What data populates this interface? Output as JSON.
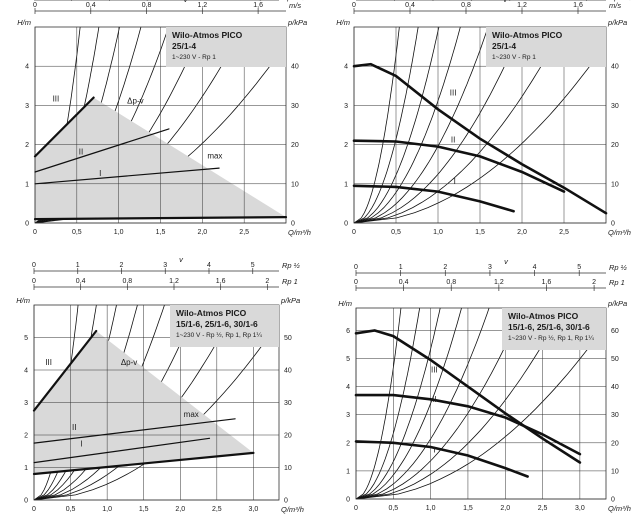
{
  "colors": {
    "grid": "#333333",
    "fill": "#d9d9d9",
    "curve": "#111111",
    "box": "#d9d9d9"
  },
  "chart_data": [
    {
      "type": "line",
      "variant": "control-range",
      "title": "Wilo-Atmos PICO",
      "subtitle": "25/1-4",
      "note": "1~230 V - Rp 1",
      "xlabel": "Q/m³/h",
      "ylabel": "H/m",
      "y2label": "p/kPa",
      "topaxis_label": "v",
      "topaxis_unit": "m/s",
      "xlim": [
        0,
        3
      ],
      "ylim": [
        0,
        5
      ],
      "xticks": [
        "0",
        "0,5",
        "1,0",
        "1,5",
        "2,0",
        "2,5"
      ],
      "yticks": [
        "0",
        "1",
        "2",
        "3",
        "4"
      ],
      "y2ticks": [
        "0",
        "10",
        "20",
        "30",
        "40"
      ],
      "topaxis": [
        {
          "unit": "m/s",
          "ticks": [
            "0",
            "0,4",
            "0,8",
            "1,2",
            "1,6"
          ],
          "values": [
            0,
            0.4,
            0.8,
            1.2,
            1.6
          ],
          "max": 1.8
        }
      ],
      "envelope": {
        "x": [
          0,
          0,
          0.7,
          3.0
        ],
        "y": [
          0.1,
          1.7,
          3.2,
          0.15
        ]
      },
      "series": [
        {
          "name": "III",
          "x": [
            0,
            0.7
          ],
          "y": [
            1.7,
            3.2
          ]
        },
        {
          "name": "II",
          "x": [
            0,
            1.6
          ],
          "y": [
            1.3,
            2.4
          ]
        },
        {
          "name": "I",
          "x": [
            0,
            2.2
          ],
          "y": [
            1.0,
            1.4
          ]
        },
        {
          "name": "",
          "x": [
            0,
            3.0
          ],
          "y": [
            0.1,
            0.15
          ]
        }
      ],
      "labels": [
        {
          "text": "III",
          "x": 0.25,
          "y": 3.1
        },
        {
          "text": "II",
          "x": 0.55,
          "y": 1.75
        },
        {
          "text": "I",
          "x": 0.78,
          "y": 1.2
        },
        {
          "text": "Δp-v",
          "x": 1.2,
          "y": 3.05
        },
        {
          "text": "max",
          "x": 2.15,
          "y": 1.65
        }
      ]
    },
    {
      "type": "line",
      "variant": "pump-curves",
      "title": "Wilo-Atmos PICO",
      "subtitle": "25/1-4",
      "note": "1~230 V - Rp 1",
      "xlabel": "Q/m³/h",
      "ylabel": "H/m",
      "y2label": "p/kPa",
      "topaxis_label": "v",
      "topaxis_unit": "m/s",
      "xlim": [
        0,
        3
      ],
      "ylim": [
        0,
        5
      ],
      "xticks": [
        "0",
        "0,5",
        "1,0",
        "1,5",
        "2,0",
        "2,5"
      ],
      "yticks": [
        "0",
        "1",
        "2",
        "3",
        "4"
      ],
      "y2ticks": [
        "0",
        "10",
        "20",
        "30",
        "40"
      ],
      "topaxis": [
        {
          "unit": "m/s",
          "ticks": [
            "0",
            "0,4",
            "0,8",
            "1,2",
            "1,6"
          ],
          "values": [
            0,
            0.4,
            0.8,
            1.2,
            1.6
          ],
          "max": 1.8
        }
      ],
      "series": [
        {
          "name": "III",
          "x": [
            0,
            0.2,
            0.5,
            1.0,
            1.5,
            2.0,
            2.5,
            3.0
          ],
          "y": [
            4.0,
            4.05,
            3.75,
            2.9,
            2.15,
            1.5,
            0.9,
            0.25
          ]
        },
        {
          "name": "II",
          "x": [
            0,
            0.5,
            1.0,
            1.5,
            2.0,
            2.5
          ],
          "y": [
            2.1,
            2.08,
            1.95,
            1.7,
            1.3,
            0.8
          ]
        },
        {
          "name": "I",
          "x": [
            0,
            0.5,
            1.0,
            1.5,
            1.9
          ],
          "y": [
            0.95,
            0.92,
            0.8,
            0.55,
            0.3
          ]
        }
      ],
      "labels": [
        {
          "text": "III",
          "x": 1.18,
          "y": 3.25
        },
        {
          "text": "II",
          "x": 1.18,
          "y": 2.05
        },
        {
          "text": "I",
          "x": 1.2,
          "y": 1.0
        }
      ]
    },
    {
      "type": "line",
      "variant": "control-range",
      "title": "Wilo-Atmos PICO",
      "subtitle": "15/1-6, 25/1-6, 30/1-6",
      "note": "1~230 V - Rp ½, Rp 1, Rp 1¼",
      "xlabel": "Q/m³/h",
      "ylabel": "H/m",
      "y2label": "p/kPa",
      "topaxis_label": "v",
      "xlim": [
        0,
        3.35
      ],
      "ylim": [
        0,
        6
      ],
      "xticks": [
        "0",
        "0,5",
        "1,0",
        "1,5",
        "2,0",
        "2,5",
        "3,0"
      ],
      "yticks": [
        "0",
        "1",
        "2",
        "3",
        "4",
        "5"
      ],
      "y2ticks": [
        "0",
        "10",
        "20",
        "30",
        "40",
        "50"
      ],
      "topaxis": [
        {
          "unit": "Rp ½",
          "ticks": [
            "0",
            "1",
            "2",
            "3",
            "4",
            "5"
          ],
          "values": [
            0,
            1,
            2,
            3,
            4,
            5
          ],
          "max": 5.6
        },
        {
          "unit": "Rp 1",
          "ticks": [
            "0",
            "0,4",
            "0,8",
            "1,2",
            "1,6",
            "2"
          ],
          "values": [
            0,
            0.4,
            0.8,
            1.2,
            1.6,
            2.0
          ],
          "max": 2.1
        },
        {
          "unit": "Rp 1¼",
          "ticks": [
            "0",
            "0,2",
            "0,4",
            "0,6",
            "0,8",
            "1",
            "1,2"
          ],
          "values": [
            0,
            0.2,
            0.4,
            0.6,
            0.8,
            1.0,
            1.2
          ],
          "max": 1.3
        }
      ],
      "envelope": {
        "x": [
          0,
          0,
          0.85,
          3.0
        ],
        "y": [
          0.8,
          2.75,
          5.2,
          1.45
        ]
      },
      "series": [
        {
          "name": "III",
          "x": [
            0,
            0.85
          ],
          "y": [
            2.75,
            5.2
          ]
        },
        {
          "name": "II",
          "x": [
            0,
            2.75
          ],
          "y": [
            1.75,
            2.5
          ]
        },
        {
          "name": "I",
          "x": [
            0,
            2.4
          ],
          "y": [
            1.15,
            1.9
          ]
        },
        {
          "name": "",
          "x": [
            0,
            3.0
          ],
          "y": [
            0.8,
            1.45
          ]
        }
      ],
      "labels": [
        {
          "text": "III",
          "x": 0.2,
          "y": 4.15
        },
        {
          "text": "II",
          "x": 0.55,
          "y": 2.15
        },
        {
          "text": "I",
          "x": 0.65,
          "y": 1.65
        },
        {
          "text": "Δp-v",
          "x": 1.3,
          "y": 4.15
        },
        {
          "text": "max",
          "x": 2.15,
          "y": 2.55
        }
      ]
    },
    {
      "type": "line",
      "variant": "pump-curves",
      "title": "Wilo-Atmos PICO",
      "subtitle": "15/1-6, 25/1-6, 30/1-6",
      "note": "1~230 V - Rp ½, Rp 1, Rp 1¼",
      "xlabel": "Q/m³/h",
      "ylabel": "H/m",
      "y2label": "p/kPa",
      "topaxis_label": "v",
      "xlim": [
        0,
        3.35
      ],
      "ylim": [
        0,
        6.8
      ],
      "xticks": [
        "0",
        "0,5",
        "1,0",
        "1,5",
        "2,0",
        "2,5",
        "3,0"
      ],
      "yticks": [
        "0",
        "1",
        "2",
        "3",
        "4",
        "5",
        "6"
      ],
      "y2ticks": [
        "0",
        "10",
        "20",
        "30",
        "40",
        "50",
        "60"
      ],
      "topaxis": [
        {
          "unit": "Rp ½",
          "ticks": [
            "0",
            "1",
            "2",
            "3",
            "4",
            "5"
          ],
          "values": [
            0,
            1,
            2,
            3,
            4,
            5
          ],
          "max": 5.6
        },
        {
          "unit": "Rp 1",
          "ticks": [
            "0",
            "0,4",
            "0,8",
            "1,2",
            "1,6",
            "2"
          ],
          "values": [
            0,
            0.4,
            0.8,
            1.2,
            1.6,
            2.0
          ],
          "max": 2.1
        },
        {
          "unit": "Rp 1¼",
          "ticks": [
            "0",
            "0,2",
            "0,4",
            "0,6",
            "0,8",
            "1",
            "1,2"
          ],
          "values": [
            0,
            0.2,
            0.4,
            0.6,
            0.8,
            1.0,
            1.2
          ],
          "max": 1.3
        }
      ],
      "series": [
        {
          "name": "III",
          "x": [
            0,
            0.25,
            0.5,
            1.0,
            1.5,
            2.0,
            2.5,
            3.0
          ],
          "y": [
            5.9,
            6.0,
            5.8,
            4.95,
            4.0,
            3.05,
            2.15,
            1.3
          ]
        },
        {
          "name": "II",
          "x": [
            0,
            0.5,
            1.0,
            1.5,
            2.0,
            2.5,
            3.0
          ],
          "y": [
            3.7,
            3.7,
            3.55,
            3.3,
            2.9,
            2.3,
            1.6
          ]
        },
        {
          "name": "I",
          "x": [
            0,
            0.5,
            1.0,
            1.5,
            2.0,
            2.3
          ],
          "y": [
            2.05,
            2.0,
            1.85,
            1.55,
            1.1,
            0.8
          ]
        }
      ],
      "labels": [
        {
          "text": "III",
          "x": 1.05,
          "y": 4.5
        },
        {
          "text": "II",
          "x": 1.05,
          "y": 3.45
        },
        {
          "text": "I",
          "x": 1.05,
          "y": 1.65
        }
      ]
    }
  ]
}
